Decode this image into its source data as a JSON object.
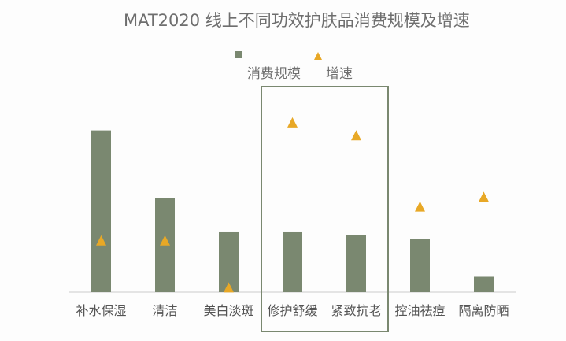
{
  "chart_data": {
    "type": "bar",
    "title": "MAT2020 线上不同功效护肤品消费规模及增速",
    "categories": [
      "补水保湿",
      "清洁",
      "美白淡斑",
      "修护舒缓",
      "紧致抗老",
      "控油祛痘",
      "隔离防晒"
    ],
    "series": [
      {
        "name": "消费规模",
        "mark": "bar",
        "values": [
          10.0,
          5.8,
          3.75,
          3.75,
          3.55,
          3.3,
          0.95
        ]
      },
      {
        "name": "增速",
        "mark": "triangle",
        "values": [
          3.2,
          3.2,
          0.3,
          10.5,
          9.7,
          5.3,
          5.9
        ]
      }
    ],
    "ylim": [
      0,
      13
    ],
    "grid": false,
    "legend": {
      "position": "top-center"
    },
    "highlight": {
      "categories": [
        "修护舒缓",
        "紧致抗老"
      ]
    },
    "colors": {
      "bar": "#7a8870",
      "triangle": "#e8a826",
      "box": "#7a8870",
      "axis": "#cccccc"
    }
  }
}
